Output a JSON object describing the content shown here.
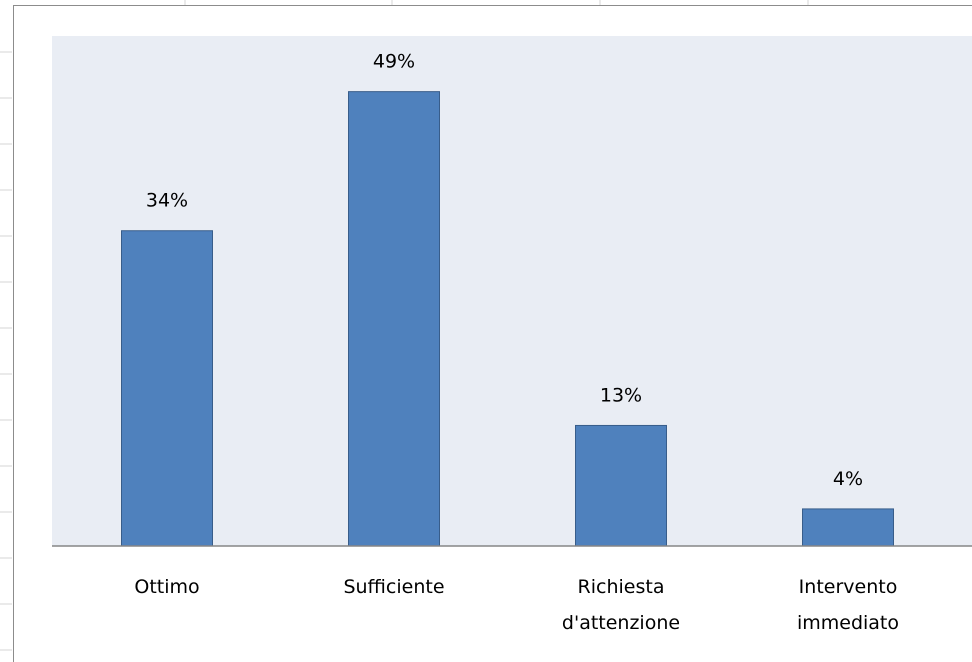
{
  "chart_data": {
    "type": "bar",
    "categories": [
      [
        "Ottimo"
      ],
      [
        "Sufficiente"
      ],
      [
        "Richiesta",
        "d'attenzione"
      ],
      [
        "Intervento",
        "immediato"
      ]
    ],
    "values": [
      34,
      49,
      13,
      4
    ],
    "value_labels": [
      "34%",
      "49%",
      "13%",
      "4%"
    ],
    "title": "",
    "xlabel": "",
    "ylabel": "",
    "ylim": [
      0,
      55
    ],
    "grid": false,
    "legend": "none",
    "colors": {
      "bar_fill": "#4f81bd",
      "bar_stroke": "#385d8a",
      "plot_area": "#e9edf4",
      "axis": "#868686",
      "sheet_grid": "#d4d4d4"
    }
  }
}
